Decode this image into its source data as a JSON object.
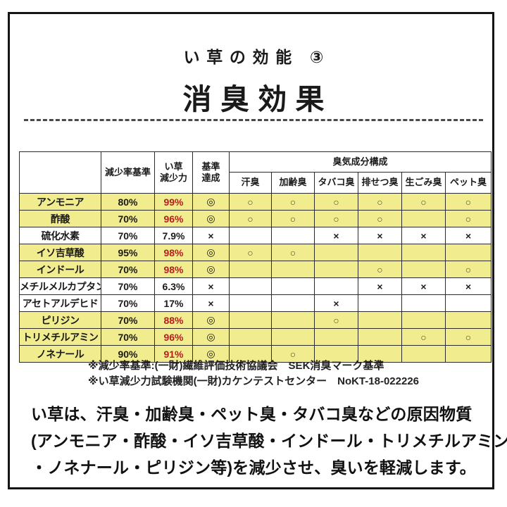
{
  "header": {
    "series_title": "い草の効能 ③",
    "main_title": "消臭効果"
  },
  "table": {
    "headers": {
      "reduction_standard": "減少率基準",
      "igusa_power_line1": "い草",
      "igusa_power_line2": "減少力",
      "achieved_line1": "基準",
      "achieved_line2": "達成",
      "odor_group": "臭気成分構成"
    },
    "odor_headers": [
      "汗臭",
      "加齢臭",
      "タバコ臭",
      "排せつ臭",
      "生ごみ臭",
      "ペット臭"
    ],
    "rows": [
      {
        "name": "アンモニア",
        "standard": "80%",
        "power": "99%",
        "power_red": true,
        "achieved": "◎",
        "odors": [
          "○",
          "○",
          "○",
          "○",
          "○",
          "○"
        ],
        "highlight": true
      },
      {
        "name": "酢酸",
        "standard": "70%",
        "power": "96%",
        "power_red": true,
        "achieved": "◎",
        "odors": [
          "○",
          "○",
          "○",
          "○",
          "",
          "○"
        ],
        "highlight": true
      },
      {
        "name": "硫化水素",
        "standard": "70%",
        "power": "7.9%",
        "power_red": false,
        "achieved": "×",
        "odors": [
          "",
          "",
          "×",
          "×",
          "×",
          "×"
        ],
        "highlight": false
      },
      {
        "name": "イソ吉草酸",
        "standard": "95%",
        "power": "98%",
        "power_red": true,
        "achieved": "◎",
        "odors": [
          "○",
          "○",
          "",
          "",
          "",
          ""
        ],
        "highlight": true
      },
      {
        "name": "インドール",
        "standard": "70%",
        "power": "98%",
        "power_red": true,
        "achieved": "◎",
        "odors": [
          "",
          "",
          "",
          "○",
          "",
          "○"
        ],
        "highlight": true
      },
      {
        "name": "メチルメルカプタン",
        "standard": "70%",
        "power": "6.3%",
        "power_red": false,
        "achieved": "×",
        "odors": [
          "",
          "",
          "",
          "×",
          "×",
          "×"
        ],
        "highlight": false
      },
      {
        "name": "アセトアルデヒド",
        "standard": "70%",
        "power": "17%",
        "power_red": false,
        "achieved": "×",
        "odors": [
          "",
          "",
          "×",
          "",
          "",
          ""
        ],
        "highlight": false
      },
      {
        "name": "ピリジン",
        "standard": "70%",
        "power": "88%",
        "power_red": true,
        "achieved": "◎",
        "odors": [
          "",
          "",
          "○",
          "",
          "",
          ""
        ],
        "highlight": true
      },
      {
        "name": "トリメチルアミン",
        "standard": "70%",
        "power": "96%",
        "power_red": true,
        "achieved": "◎",
        "odors": [
          "",
          "",
          "",
          "",
          "○",
          "○"
        ],
        "highlight": true
      },
      {
        "name": "ノネナール",
        "standard": "90%",
        "power": "91%",
        "power_red": true,
        "achieved": "◎",
        "odors": [
          "",
          "○",
          "",
          "",
          "",
          ""
        ],
        "highlight": true
      }
    ]
  },
  "footnotes": [
    "※減少率基準:(一財)繊維評価技術協議会　SEK消臭マーク基準",
    "※い草減少力試験機関(一財)カケンテストセンター　NoKT-18-022226"
  ],
  "description_lines": [
    "い草は、汗臭・加齢臭・ペット臭・タバコ臭などの原因物質",
    "(アンモニア・酢酸・イソ吉草酸・インドール・トリメチルアミン",
    "・ノネナール・ピリジン等)を減少させ、臭いを軽減します。"
  ],
  "colors": {
    "highlight_yellow": "#f1ec8d",
    "power_red": "#b81c22",
    "circle_olive": "#4c4c28",
    "frame_black": "#151515"
  }
}
